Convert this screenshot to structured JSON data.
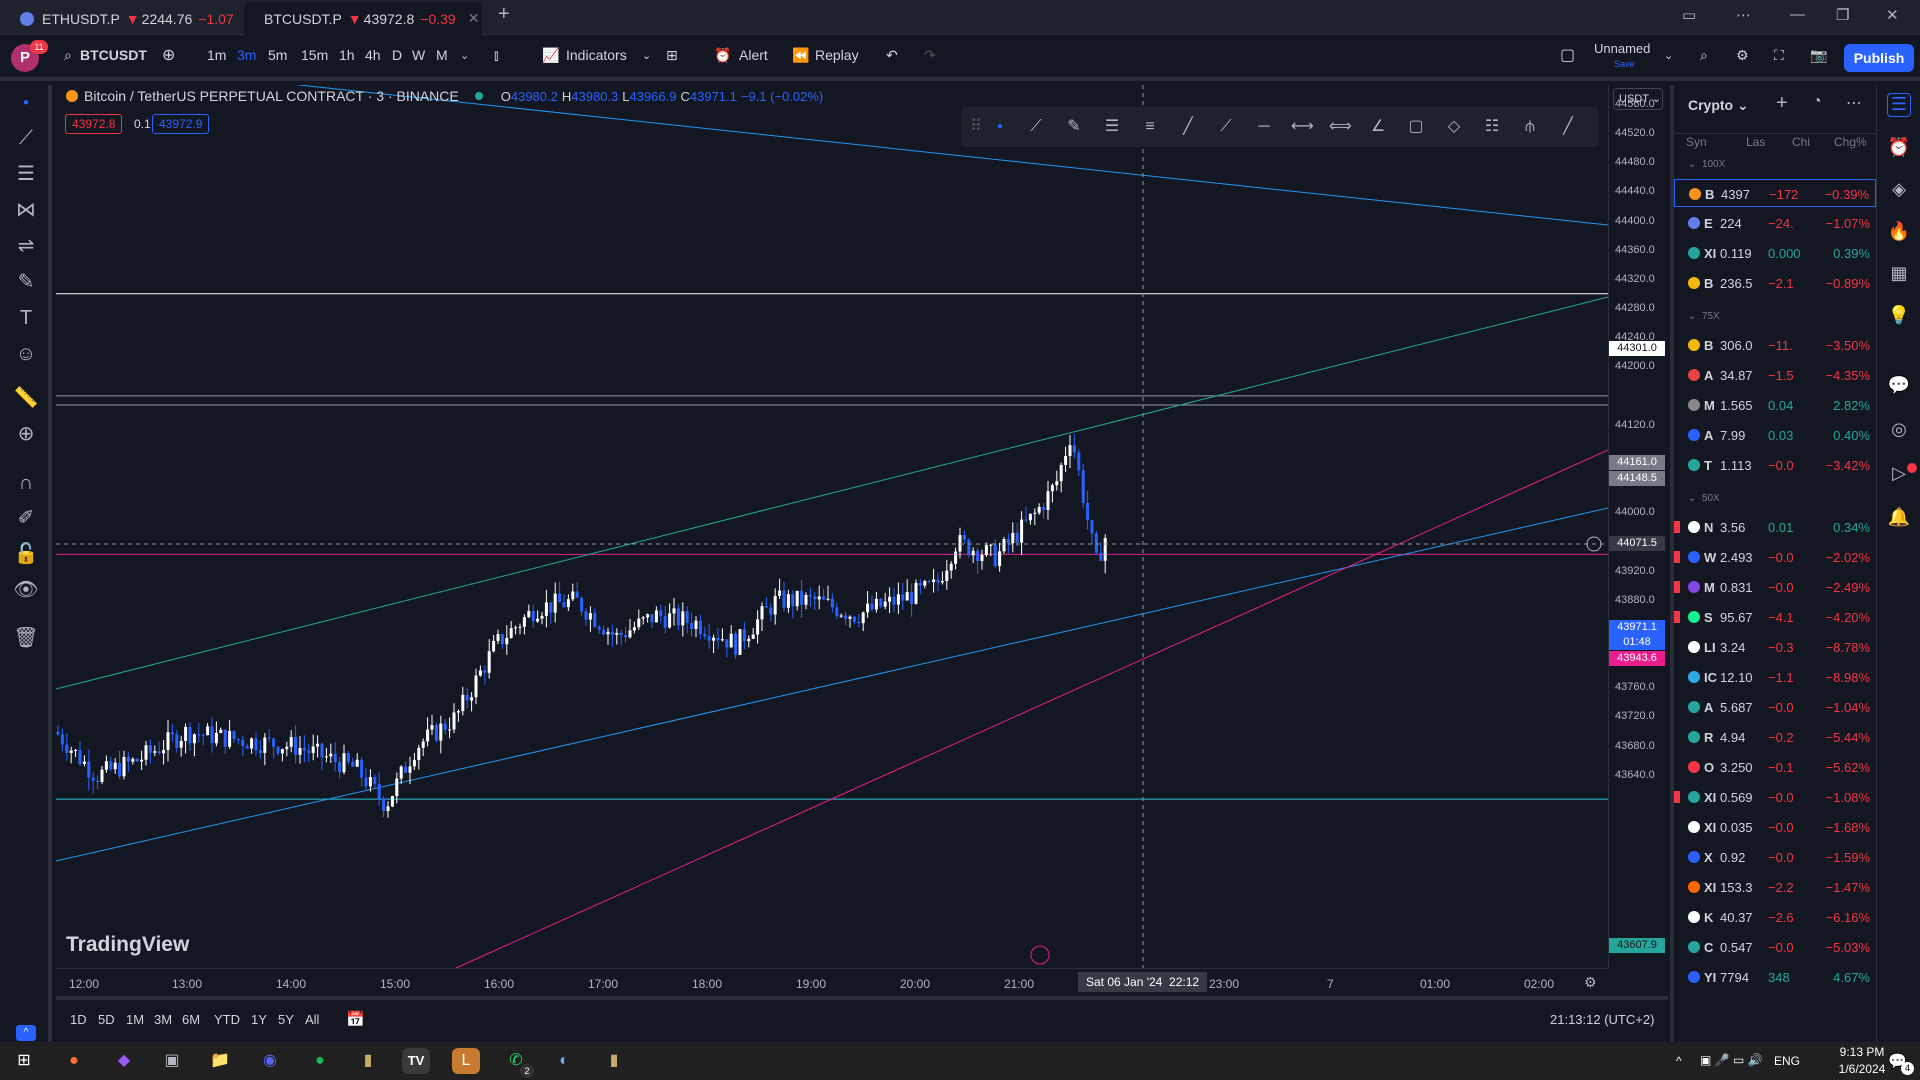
{
  "browser": {
    "tabs": [
      {
        "label": "ETHUSDT.P",
        "price": "2244.76",
        "change": "−1.07",
        "arrow": "▼"
      },
      {
        "label": "BTCUSDT.P",
        "price": "43972.8",
        "change": "−0.39",
        "arrow": "▼"
      }
    ],
    "new_tab": "+"
  },
  "toolbar": {
    "avatar": "P",
    "avatar_badge": "11",
    "symbol": "BTCUSDT",
    "intervals": [
      "1m",
      "3m",
      "5m",
      "15m",
      "1h",
      "4h",
      "D",
      "W",
      "M"
    ],
    "selected_interval": "3m",
    "indicators": "Indicators",
    "alert": "Alert",
    "replay": "Replay",
    "layout_name": "Unnamed",
    "save": "Save",
    "publish": "Publish"
  },
  "legend": {
    "title": "Bitcoin / TetherUS PERPETUAL CONTRACT · 3 · BINANCE",
    "o_label": "O",
    "o": "43980.2",
    "h_label": "H",
    "h": "43980.3",
    "l_label": "L",
    "l": "43966.9",
    "c_label": "C",
    "c": "43971.1",
    "change": "−9.1 (−0.02%)",
    "sell_price": "43972.8",
    "spread": "0.1",
    "buy_price": "43972.9"
  },
  "price_axis": {
    "currency": "USDT",
    "ticks": [
      "44560.0",
      "44520.0",
      "44480.0",
      "44440.0",
      "44400.0",
      "44360.0",
      "44320.0",
      "44280.0",
      "44240.0",
      "44200.0",
      "44120.0",
      "44040.0",
      "44000.0",
      "43920.0",
      "43880.0",
      "43840.0",
      "43800.0",
      "43760.0",
      "43720.0",
      "43680.0",
      "43640.0"
    ],
    "labels": {
      "line1": "44301.0",
      "line2": "44161.0",
      "line3": "44148.5",
      "crosshair": "44071.5",
      "last": "43971.1",
      "countdown": "01:48",
      "pink": "43943.6",
      "cyan": "43607.9"
    }
  },
  "time_axis": {
    "ticks": [
      "12:00",
      "13:00",
      "14:00",
      "15:00",
      "16:00",
      "17:00",
      "18:00",
      "19:00",
      "20:00",
      "21:00",
      "23:00",
      "7",
      "01:00",
      "02:00"
    ],
    "crosshair_label": "Sat 06 Jan '24",
    "crosshair_time": "22:12"
  },
  "bottom": {
    "ranges": [
      "1D",
      "5D",
      "1M",
      "3M",
      "6M",
      "YTD",
      "1Y",
      "5Y",
      "All"
    ],
    "clock": "21:13:12 (UTC+2)"
  },
  "watermark": "TradingView",
  "watchlist": {
    "title": "Crypto",
    "columns": [
      "Syn",
      "Las",
      "Chi",
      "Chg%"
    ],
    "groups": [
      {
        "name": "100X",
        "rows": [
          {
            "sym": "B",
            "last": "4397",
            "chg": "−172",
            "pct": "−0.39%",
            "up": false,
            "sel": true,
            "color": "#f7931a"
          },
          {
            "sym": "E",
            "last": "224",
            "chg": "−24.",
            "pct": "−1.07%",
            "up": false,
            "color": "#627eea"
          },
          {
            "sym": "XI",
            "last": "0.119",
            "chg": "0.000",
            "pct": "0.39%",
            "up": true,
            "color": "#26a69a"
          },
          {
            "sym": "B",
            "last": "236.5",
            "chg": "−2.1",
            "pct": "−0.89%",
            "up": false,
            "color": "#f0b90b"
          }
        ]
      },
      {
        "name": "75X",
        "rows": [
          {
            "sym": "B",
            "last": "306.0",
            "chg": "−11.",
            "pct": "−3.50%",
            "up": false,
            "color": "#f0b90b"
          },
          {
            "sym": "A",
            "last": "34.87",
            "chg": "−1.5",
            "pct": "−4.35%",
            "up": false,
            "color": "#e84142"
          },
          {
            "sym": "M",
            "last": "1.565",
            "chg": "0.04",
            "pct": "2.82%",
            "up": true,
            "color": "#888888"
          },
          {
            "sym": "A",
            "last": "7.99",
            "chg": "0.03",
            "pct": "0.40%",
            "up": true,
            "color": "#2962ff"
          },
          {
            "sym": "T",
            "last": "1.113",
            "chg": "−0.0",
            "pct": "−3.42%",
            "up": false,
            "color": "#26a69a"
          }
        ]
      },
      {
        "name": "50X",
        "rows": [
          {
            "sym": "N",
            "last": "3.56",
            "chg": "0.01",
            "pct": "0.34%",
            "up": true,
            "color": "#ffffff",
            "flag": true
          },
          {
            "sym": "W",
            "last": "2.493",
            "chg": "−0.0",
            "pct": "−2.02%",
            "up": false,
            "color": "#2962ff",
            "flag": true
          },
          {
            "sym": "M",
            "last": "0.831",
            "chg": "−0.0",
            "pct": "−2.49%",
            "up": false,
            "color": "#8247e5",
            "flag": true
          },
          {
            "sym": "S",
            "last": "95.67",
            "chg": "−4.1",
            "pct": "−4.20%",
            "up": false,
            "color": "#14f195",
            "flag": true
          },
          {
            "sym": "LI",
            "last": "3.24",
            "chg": "−0.3",
            "pct": "−8.78%",
            "up": false,
            "color": "#ffffff"
          },
          {
            "sym": "IC",
            "last": "12.10",
            "chg": "−1.1",
            "pct": "−8.98%",
            "up": false,
            "color": "#29abe2"
          },
          {
            "sym": "A",
            "last": "5.687",
            "chg": "−0.0",
            "pct": "−1.04%",
            "up": false,
            "color": "#26a69a"
          },
          {
            "sym": "R",
            "last": "4.94",
            "chg": "−0.2",
            "pct": "−5.44%",
            "up": false,
            "color": "#26a69a"
          },
          {
            "sym": "O",
            "last": "3.250",
            "chg": "−0.1",
            "pct": "−5.62%",
            "up": false,
            "color": "#f23645"
          },
          {
            "sym": "XI",
            "last": "0.569",
            "chg": "−0.0",
            "pct": "−1.08%",
            "up": false,
            "color": "#26a69a",
            "flag": true
          },
          {
            "sym": "XI",
            "last": "0.035",
            "chg": "−0.0",
            "pct": "−1.68%",
            "up": false,
            "color": "#ffffff"
          },
          {
            "sym": "X",
            "last": "0.92",
            "chg": "−0.0",
            "pct": "−1.59%",
            "up": false,
            "color": "#2962ff"
          },
          {
            "sym": "XI",
            "last": "153.3",
            "chg": "−2.2",
            "pct": "−1.47%",
            "up": false,
            "color": "#ff6600"
          },
          {
            "sym": "K",
            "last": "40.37",
            "chg": "−2.6",
            "pct": "−6.16%",
            "up": false,
            "color": "#ffffff"
          },
          {
            "sym": "C",
            "last": "0.547",
            "chg": "−0.0",
            "pct": "−5.03%",
            "up": false,
            "color": "#26a69a"
          },
          {
            "sym": "YI",
            "last": "7794",
            "chg": "348",
            "pct": "4.67%",
            "up": true,
            "color": "#2962ff"
          }
        ]
      }
    ]
  },
  "taskbar": {
    "lang": "ENG",
    "time": "9:13 PM",
    "date": "1/6/2024",
    "notif": "4",
    "whatsapp_badge": "2"
  },
  "colors": {
    "up": "#26a69a",
    "down": "#f23645",
    "accent": "#2962ff",
    "candle_up": "#ffffff",
    "candle_down": "#2962ff",
    "pink_line": "#e91e8c",
    "blue_line": "#2196f3",
    "teal_line": "#26a69a"
  }
}
